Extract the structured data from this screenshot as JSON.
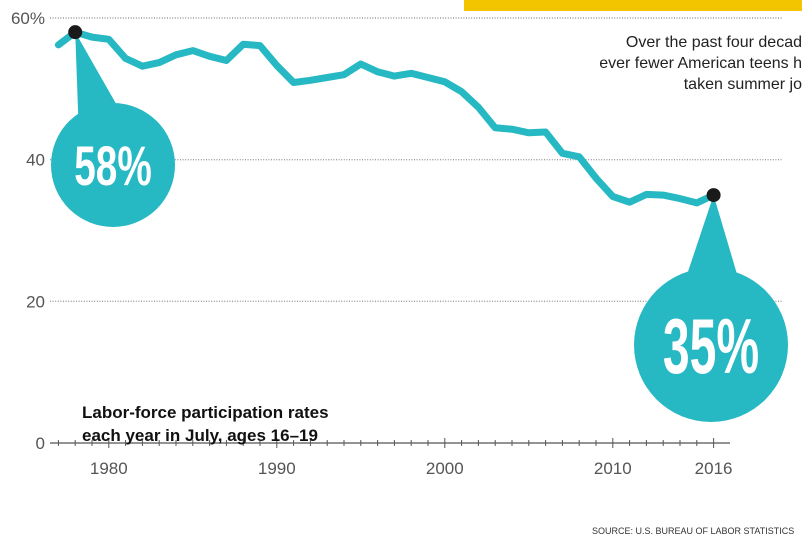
{
  "colors": {
    "line": "#26B8C3",
    "callout": "#26B8C3",
    "banner": "#F2C500",
    "point": "#1a1a1a",
    "grid": "#999999"
  },
  "chart_data": {
    "type": "line",
    "ylim": [
      0,
      60
    ],
    "yticks": [
      0,
      20,
      40,
      60
    ],
    "ytick_labels": [
      "0",
      "20",
      "40",
      "60%"
    ],
    "xlim": [
      1976.5,
      2016.5
    ],
    "xticks": [
      1980,
      1990,
      2000,
      2010,
      2016
    ],
    "xtick_labels": [
      "1980",
      "1990",
      "2000",
      "2010",
      "2016"
    ],
    "grid": true,
    "series": [
      {
        "x": [
          1977,
          1978,
          1979,
          1980,
          1981,
          1982,
          1983,
          1984,
          1985,
          1986,
          1987,
          1988,
          1989,
          1990,
          1991,
          1992,
          1993,
          1994,
          1995,
          1996,
          1997,
          1998,
          1999,
          2000,
          2001,
          2002,
          2003,
          2004,
          2005,
          2006,
          2007,
          2008,
          2009,
          2010,
          2011,
          2012,
          2013,
          2014,
          2015,
          2016
        ],
        "y": [
          56.2,
          58.0,
          57.3,
          57.0,
          54.3,
          53.2,
          53.7,
          54.8,
          55.4,
          54.6,
          54.0,
          56.3,
          56.1,
          53.3,
          50.9,
          51.2,
          51.6,
          52.0,
          53.5,
          52.4,
          51.8,
          52.2,
          51.6,
          51.0,
          49.6,
          47.4,
          44.5,
          44.3,
          43.8,
          43.9,
          40.9,
          40.4,
          37.4,
          34.8,
          34.0,
          35.1,
          35.0,
          34.5,
          33.9,
          35.0
        ]
      }
    ],
    "highlights": [
      {
        "x": 1978,
        "y": 58,
        "label": "58%"
      },
      {
        "x": 2016,
        "y": 35,
        "label": "35%"
      }
    ],
    "annotation_lines": [
      "Over the past four decad",
      "ever fewer American teens h",
      "taken summer jo"
    ],
    "chart_label_lines": [
      "Labor-force participation rates",
      "each year in July, ages 16–19"
    ],
    "source": "SOURCE: U.S. BUREAU OF LABOR STATISTICS"
  }
}
